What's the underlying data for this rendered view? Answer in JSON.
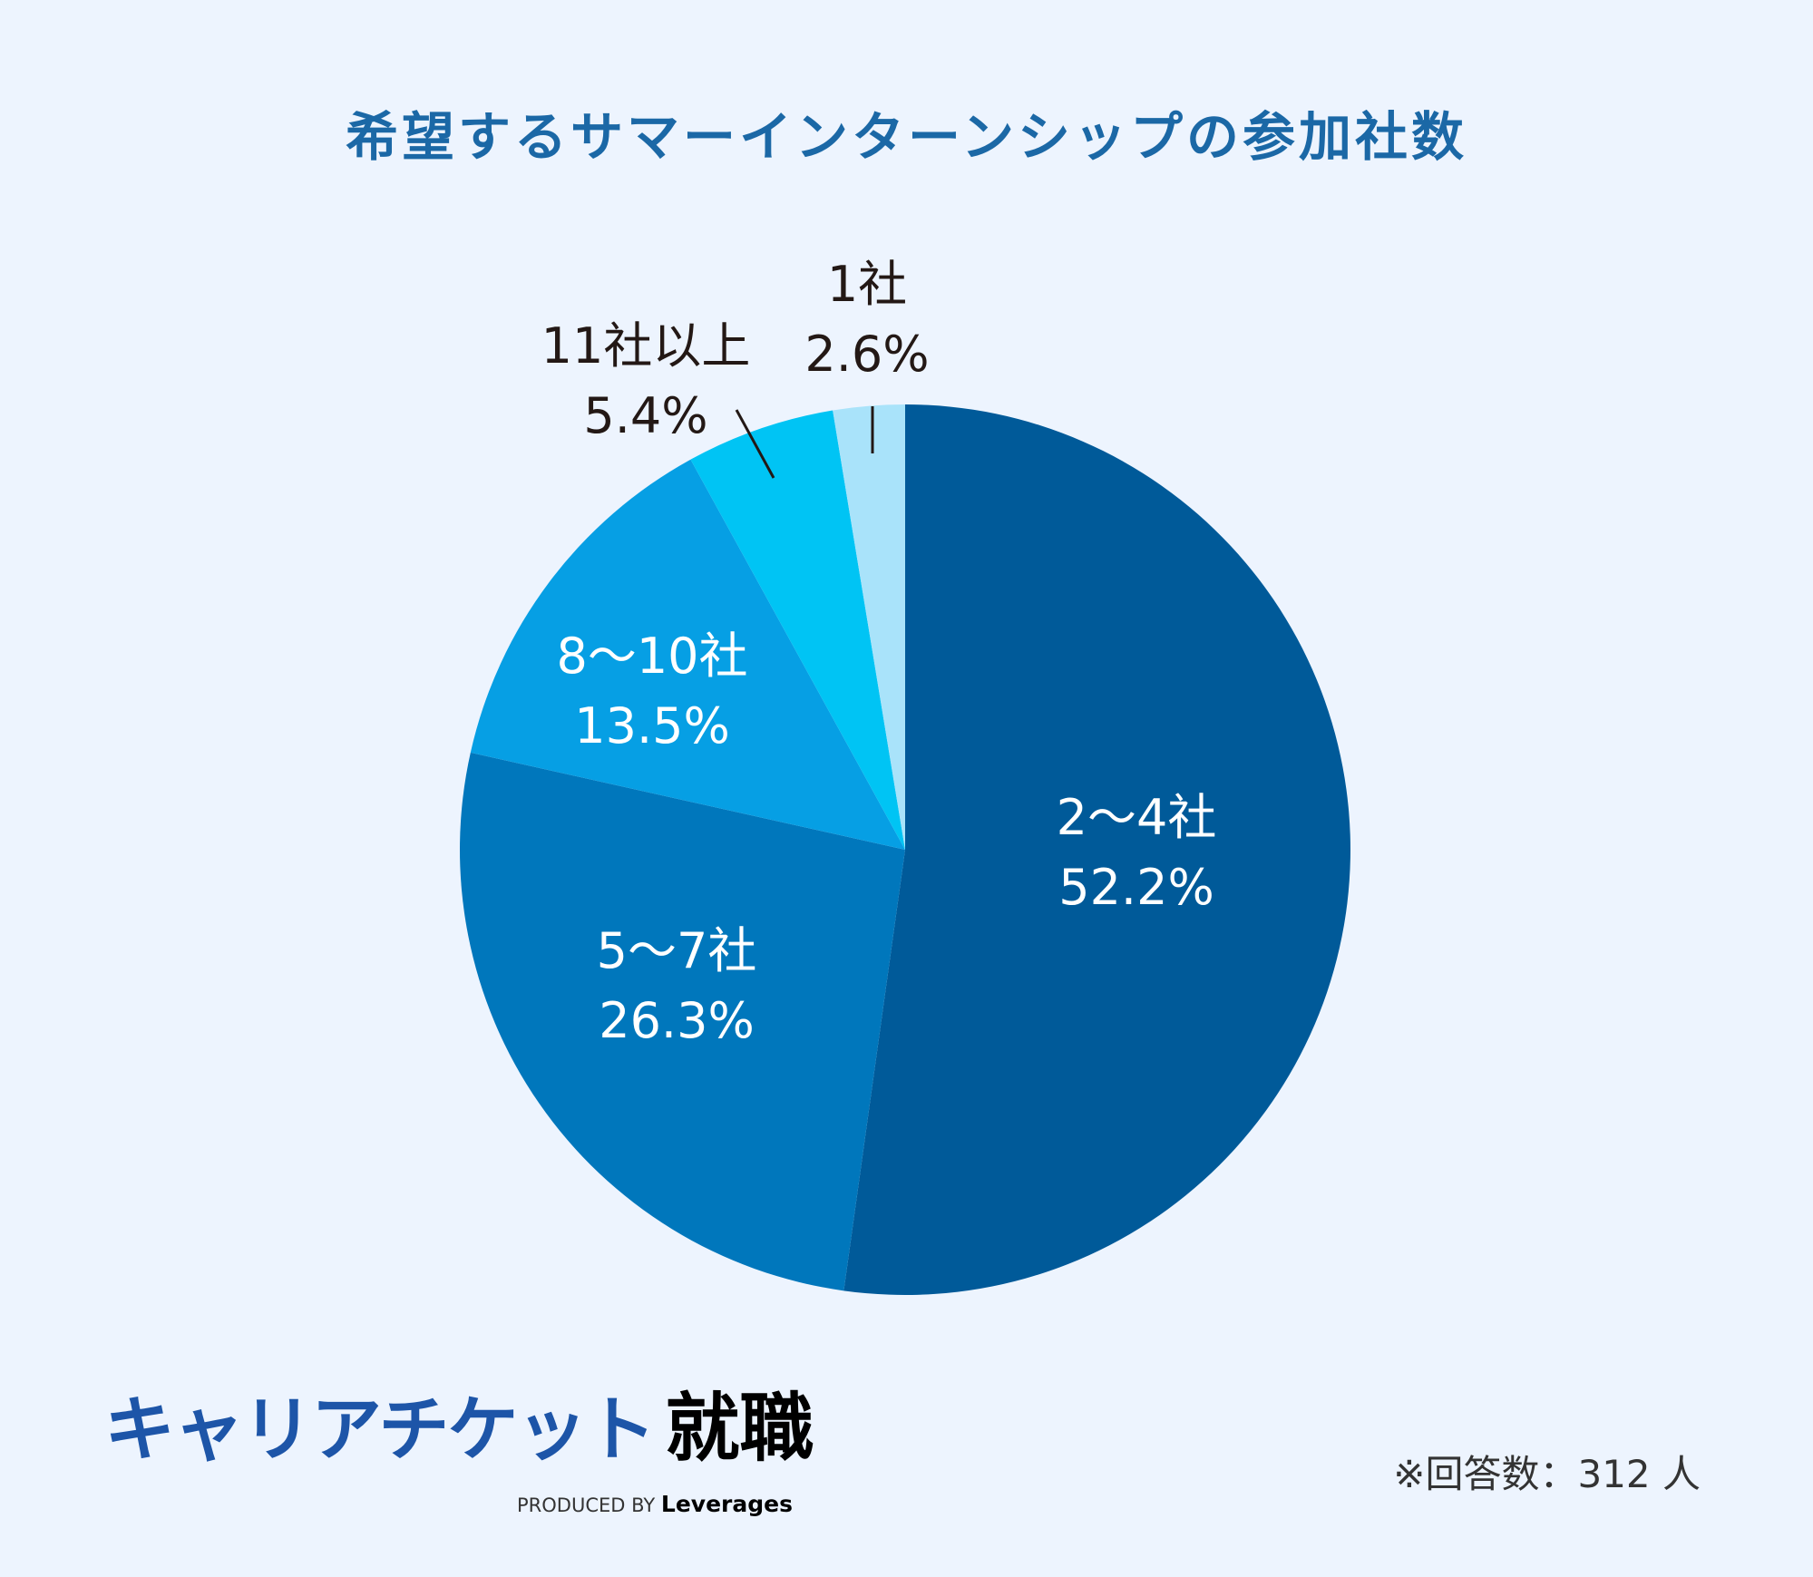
{
  "chart_data": {
    "type": "pie",
    "title": "希望するサマーインターンシップの参加社数",
    "start": "top",
    "direction": "clockwise",
    "slices": [
      {
        "label": "2～4社",
        "value": 52.2,
        "value_label": "52.2%",
        "color": "#005a99"
      },
      {
        "label": "5～7社",
        "value": 26.3,
        "value_label": "26.3%",
        "color": "#0077bc"
      },
      {
        "label": "8～10社",
        "value": 13.5,
        "value_label": "13.5%",
        "color": "#069fe4"
      },
      {
        "label": "11社以上",
        "value": 5.4,
        "value_label": "5.4%",
        "color": "#00c4f4"
      },
      {
        "label": "1社",
        "value": 2.6,
        "value_label": "2.6%",
        "color": "#a9e3fa"
      }
    ]
  },
  "footer": {
    "logo_main": "キャリアチケット",
    "logo_kanji": "就職",
    "produced_by": "PRODUCED BY",
    "produced_brand": "Leverages",
    "note": "※回答数：312 人"
  }
}
